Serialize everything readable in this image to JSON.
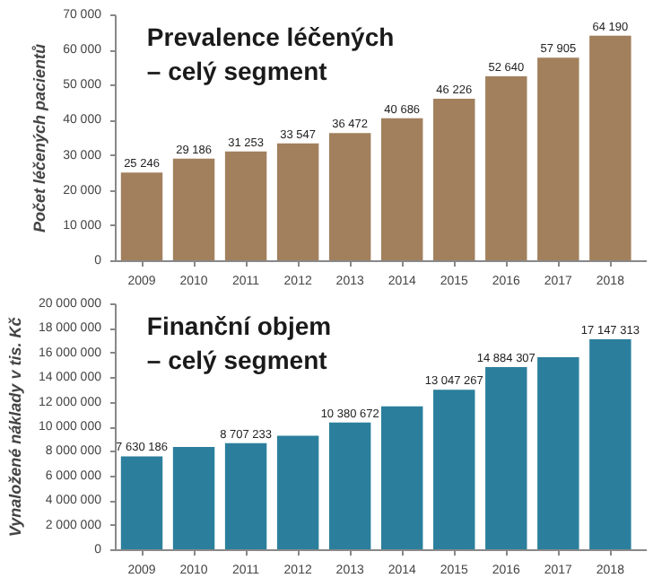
{
  "chart_data": [
    {
      "type": "bar",
      "title": "Prevalence léčených\n– celý segment",
      "ylabel": "Počet léčených pacientů",
      "categories": [
        "2009",
        "2010",
        "2011",
        "2012",
        "2013",
        "2014",
        "2015",
        "2016",
        "2017",
        "2018"
      ],
      "values": [
        25246,
        29186,
        31253,
        33547,
        36472,
        40686,
        46226,
        52640,
        57905,
        64190
      ],
      "value_labels": [
        "25 246",
        "29 186",
        "31 253",
        "33 547",
        "36 472",
        "40 686",
        "46 226",
        "52 640",
        "57 905",
        "64 190"
      ],
      "color": "#a2805d",
      "ylim": [
        0,
        70000
      ],
      "yticks": [
        {
          "value": 0,
          "label": "0"
        },
        {
          "value": 10000,
          "label": "10 000"
        },
        {
          "value": 20000,
          "label": "20 000"
        },
        {
          "value": 30000,
          "label": "30 000"
        },
        {
          "value": 40000,
          "label": "40 000"
        },
        {
          "value": 50000,
          "label": "50 000"
        },
        {
          "value": 60000,
          "label": "60 000"
        },
        {
          "value": 70000,
          "label": "70 000"
        }
      ],
      "grid": false,
      "legend": false
    },
    {
      "type": "bar",
      "title": "Finanční objem\n– celý segment",
      "ylabel": "Vynaložené náklady v tis. Kč",
      "categories": [
        "2009",
        "2010",
        "2011",
        "2012",
        "2013",
        "2014",
        "2015",
        "2016",
        "2017",
        "2018"
      ],
      "values": [
        7630186,
        8400000,
        8707233,
        9300000,
        10380672,
        11700000,
        13047267,
        14884307,
        15700000,
        17147313
      ],
      "value_labels": [
        "7 630 186",
        null,
        "8 707 233",
        null,
        "10 380 672",
        null,
        "13 047 267",
        "14 884 307",
        null,
        "17 147 313"
      ],
      "color": "#2b7f9c",
      "ylim": [
        0,
        20000000
      ],
      "yticks": [
        {
          "value": 0,
          "label": "0"
        },
        {
          "value": 2000000,
          "label": "2 000 000"
        },
        {
          "value": 4000000,
          "label": "4 000 000"
        },
        {
          "value": 6000000,
          "label": "6 000 000"
        },
        {
          "value": 8000000,
          "label": "8 000 000"
        },
        {
          "value": 10000000,
          "label": "10 000 000"
        },
        {
          "value": 12000000,
          "label": "12 000 000"
        },
        {
          "value": 14000000,
          "label": "14 000 000"
        },
        {
          "value": 16000000,
          "label": "16 000 000"
        },
        {
          "value": 18000000,
          "label": "18 000 000"
        },
        {
          "value": 20000000,
          "label": "20 000 000"
        }
      ],
      "grid": false,
      "legend": false
    }
  ]
}
